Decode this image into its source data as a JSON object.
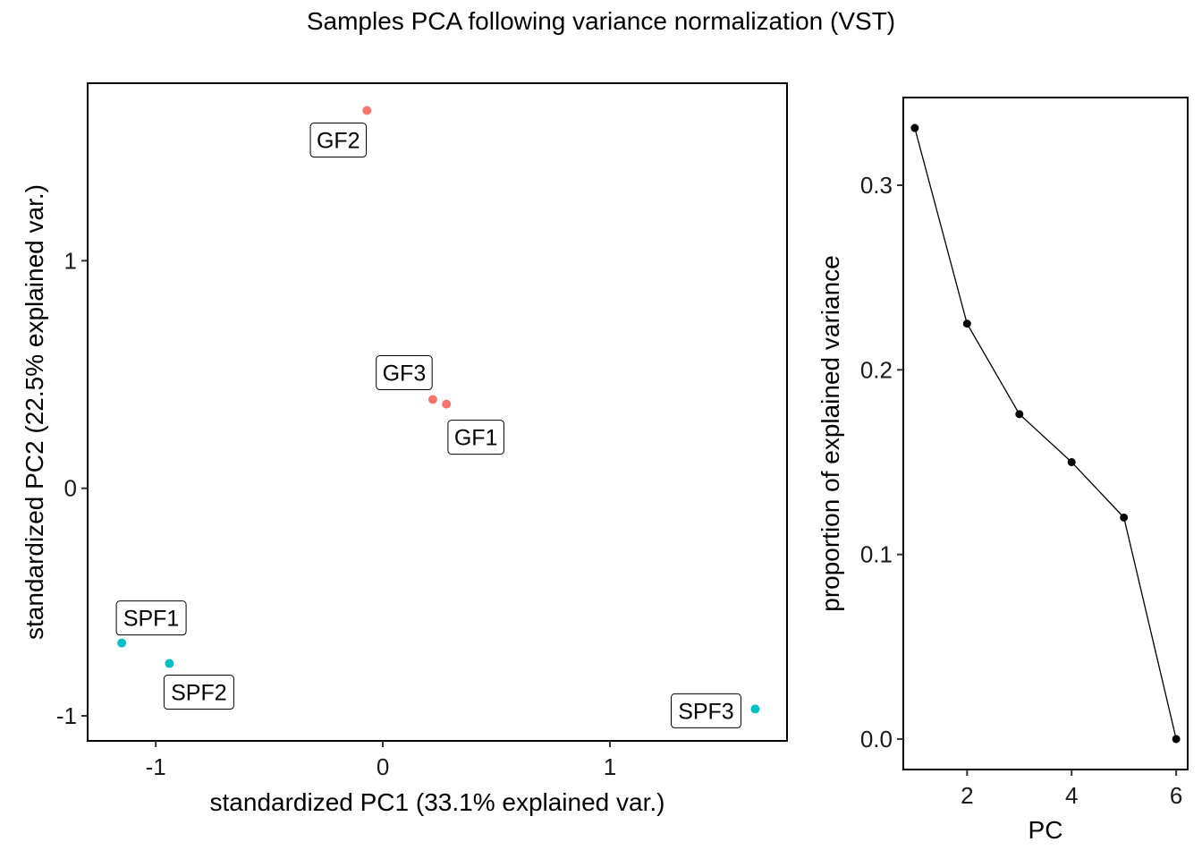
{
  "title": "Samples PCA following variance normalization (VST)",
  "colors": {
    "GF": "#F8766D",
    "SPF": "#00BFC4",
    "scree": "#000000"
  },
  "chart_data": [
    {
      "type": "scatter",
      "xlabel": "standardized PC1 (33.1% explained var.)",
      "ylabel": "standardized PC2 (22.5% explained var.)",
      "xlim": [
        -1.3,
        1.78
      ],
      "ylim": [
        -1.11,
        1.78
      ],
      "xticks": [
        -1,
        0,
        1
      ],
      "yticks": [
        -1,
        0,
        1
      ],
      "grid": false,
      "points": [
        {
          "label": "GF2",
          "group": "GF",
          "x": -0.07,
          "y": 1.66
        },
        {
          "label": "GF3",
          "group": "GF",
          "x": 0.22,
          "y": 0.39
        },
        {
          "label": "GF1",
          "group": "GF",
          "x": 0.28,
          "y": 0.37
        },
        {
          "label": "SPF1",
          "group": "SPF",
          "x": -1.15,
          "y": -0.68
        },
        {
          "label": "SPF2",
          "group": "SPF",
          "x": -0.94,
          "y": -0.77
        },
        {
          "label": "SPF3",
          "group": "SPF",
          "x": 1.64,
          "y": -0.97
        }
      ]
    },
    {
      "type": "line",
      "xlabel": "PC",
      "ylabel": "proportion of explained variance",
      "xlim": [
        0.78,
        6.22
      ],
      "ylim": [
        -0.0165,
        0.3475
      ],
      "xticks": [
        2,
        4,
        6
      ],
      "yticks": [
        0.0,
        0.1,
        0.2,
        0.3
      ],
      "ytick_labels": [
        "0.0",
        "0.1",
        "0.2",
        "0.3"
      ],
      "grid": false,
      "x": [
        1,
        2,
        3,
        4,
        5,
        6
      ],
      "values": [
        0.331,
        0.225,
        0.176,
        0.15,
        0.12,
        0.0
      ]
    }
  ]
}
